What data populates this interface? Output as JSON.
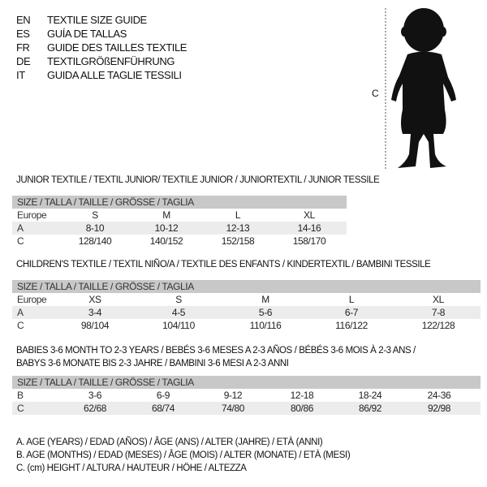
{
  "languages": [
    {
      "code": "EN",
      "name": "TEXTILE SIZE GUIDE"
    },
    {
      "code": "ES",
      "name": "GUÍA DE TALLAS"
    },
    {
      "code": "FR",
      "name": "GUIDE DES TAILLES TEXTILE"
    },
    {
      "code": "DE",
      "name": "TEXTILGRÖßENFÜHRUNG"
    },
    {
      "code": "IT",
      "name": "GUIDA ALLE TAGLIE TESSILI"
    }
  ],
  "figure": {
    "label": "C"
  },
  "junior": {
    "title": "JUNIOR TEXTILE / TEXTIL JUNIOR/ TEXTILE JUNIOR / JUNIORTEXTIL / JUNIOR TESSILE",
    "header": "SIZE / TALLA / TAILLE / GRÖSSE / TAGLIA",
    "rows": [
      {
        "label": "Europe",
        "values": [
          "S",
          "M",
          "L",
          "XL"
        ]
      },
      {
        "label": "A",
        "values": [
          "8-10",
          "10-12",
          "12-13",
          "14-16"
        ]
      },
      {
        "label": "C",
        "values": [
          "128/140",
          "140/152",
          "152/158",
          "158/170"
        ]
      }
    ]
  },
  "children": {
    "title": "CHILDREN'S TEXTILE / TEXTIL NIÑO/A / TEXTILE DES ENFANTS / KINDERTEXTIL / BAMBINI TESSILE",
    "header": "SIZE / TALLA / TAILLE / GRÖSSE / TAGLIA",
    "rows": [
      {
        "label": "Europe",
        "values": [
          "XS",
          "S",
          "M",
          "L",
          "XL"
        ]
      },
      {
        "label": "A",
        "values": [
          "3-4",
          "4-5",
          "5-6",
          "6-7",
          "7-8"
        ]
      },
      {
        "label": "C",
        "values": [
          "98/104",
          "104/110",
          "110/116",
          "116/122",
          "122/128"
        ]
      }
    ]
  },
  "babies": {
    "title_line1": "BABIES 3-6 MONTH TO 2-3 YEARS / BEBÉS 3-6 MESES A 2-3 AÑOS / BÉBÉS 3-6 MOIS À 2-3 ANS /",
    "title_line2": "BABYS 3-6 MONATE BIS 2-3 JAHRE / BAMBINI 3-6 MESI A 2-3 ANNI",
    "header": "SIZE / TALLA / TAILLE / GRÖSSE / TAGLIA",
    "rows": [
      {
        "label": "B",
        "values": [
          "3-6",
          "6-9",
          "9-12",
          "12-18",
          "18-24",
          "24-36"
        ]
      },
      {
        "label": "C",
        "values": [
          "62/68",
          "68/74",
          "74/80",
          "80/86",
          "86/92",
          "92/98"
        ]
      }
    ]
  },
  "legend": [
    "A. AGE (YEARS) / EDAD (AÑOS) / ÂGE (ANS) / ALTER (JAHRE) / ETÀ (ANNI)",
    "B. AGE (MONTHS) / EDAD (MESES) / ÂGE (MOIS) / ALTER (MONATE) / ETÀ (MESI)",
    "C. (cm) HEIGHT / ALTURA / HAUTEUR / HÖHE / ALTEZZA"
  ]
}
